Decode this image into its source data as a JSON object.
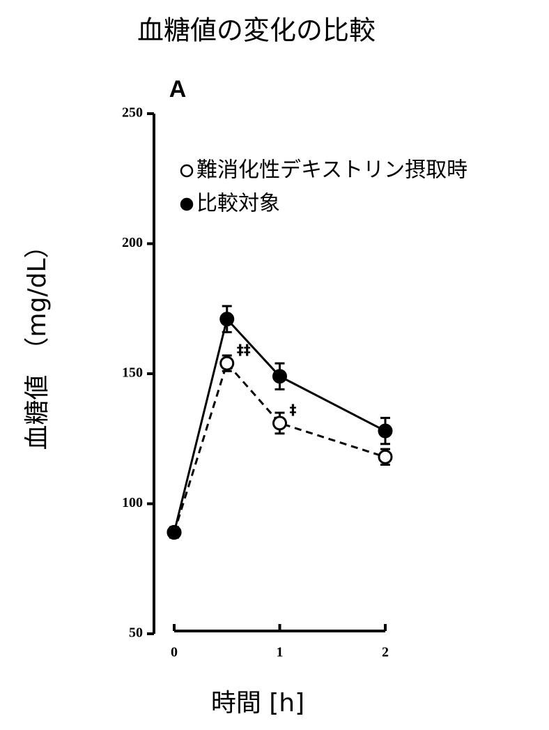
{
  "chart_data": {
    "type": "line",
    "title": "血糖値の変化の比較",
    "panel_label": "A",
    "x_label": "時間 [h]",
    "y_label": "血糖値　（mg/dL）",
    "x": [
      0,
      0.5,
      1,
      2
    ],
    "xlim": [
      0,
      2
    ],
    "xticks": [
      0,
      1,
      2
    ],
    "ylim": [
      50,
      250
    ],
    "yticks": [
      50,
      100,
      150,
      200,
      250
    ],
    "series": [
      {
        "name": "難消化性デキストリン摂取時",
        "color": "#000000",
        "marker": "open",
        "line_style": "dashed",
        "values": [
          89,
          154,
          131,
          118
        ],
        "errors": [
          2,
          3,
          4,
          3
        ]
      },
      {
        "name": "比較対象",
        "color": "#000000",
        "marker": "filled",
        "line_style": "solid",
        "values": [
          89,
          171,
          149,
          128
        ],
        "errors": [
          2,
          5,
          5,
          5
        ]
      }
    ],
    "annotations": [
      {
        "text": "‡‡",
        "series": 0,
        "index": 1
      },
      {
        "text": "‡",
        "series": 0,
        "index": 2
      }
    ]
  }
}
